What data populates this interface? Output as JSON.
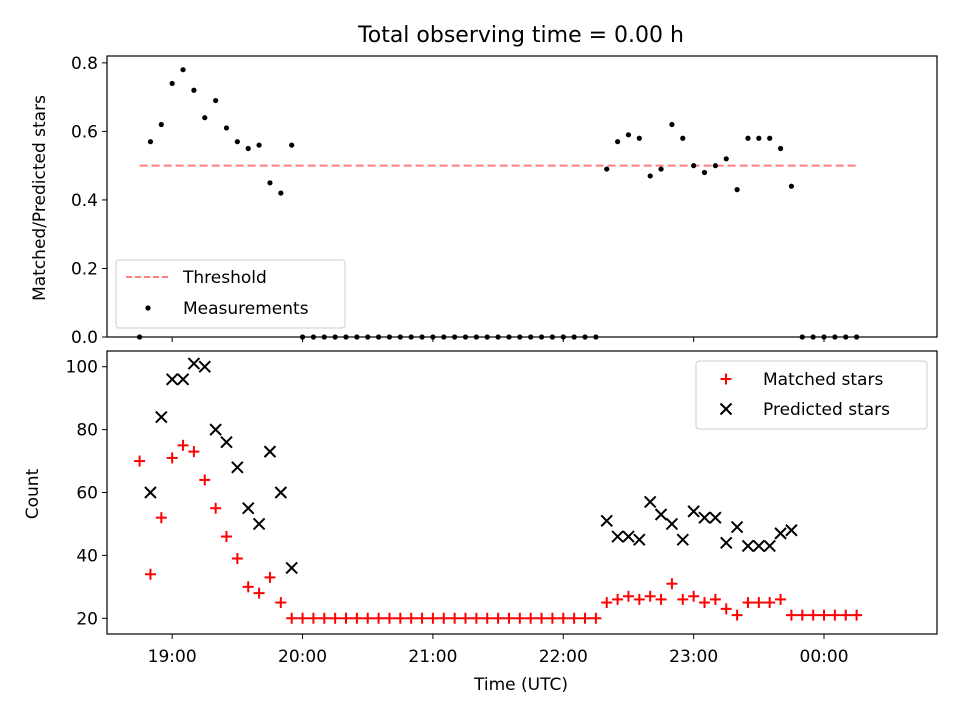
{
  "chart_data": [
    {
      "type": "scatter",
      "title": "Total observing time = 0.00 h",
      "ylabel": "Matched/Predicted stars",
      "xlabel": "",
      "xlim": [
        "18:30",
        "00:52"
      ],
      "ylim": [
        0,
        0.82
      ],
      "yticks": [
        0.0,
        0.2,
        0.4,
        0.6,
        0.8
      ],
      "ytick_labels": [
        "0.0",
        "0.2",
        "0.4",
        "0.6",
        "0.8"
      ],
      "legend_position": "lower-left",
      "threshold": {
        "name": "Threshold",
        "value": 0.5,
        "color": "#ff7f7f",
        "x_range": [
          "18:45",
          "00:15"
        ]
      },
      "series": [
        {
          "name": "Measurements",
          "color": "#000000",
          "marker": "dot",
          "points": [
            [
              "18:45",
              0.0
            ],
            [
              "18:50",
              0.57
            ],
            [
              "18:55",
              0.62
            ],
            [
              "19:00",
              0.74
            ],
            [
              "19:05",
              0.78
            ],
            [
              "19:10",
              0.72
            ],
            [
              "19:15",
              0.64
            ],
            [
              "19:20",
              0.69
            ],
            [
              "19:25",
              0.61
            ],
            [
              "19:30",
              0.57
            ],
            [
              "19:35",
              0.55
            ],
            [
              "19:40",
              0.56
            ],
            [
              "19:45",
              0.45
            ],
            [
              "19:50",
              0.42
            ],
            [
              "19:55",
              0.56
            ],
            [
              "20:00",
              0.0
            ],
            [
              "20:05",
              0.0
            ],
            [
              "20:10",
              0.0
            ],
            [
              "20:15",
              0.0
            ],
            [
              "20:20",
              0.0
            ],
            [
              "20:25",
              0.0
            ],
            [
              "20:30",
              0.0
            ],
            [
              "20:35",
              0.0
            ],
            [
              "20:40",
              0.0
            ],
            [
              "20:45",
              0.0
            ],
            [
              "20:50",
              0.0
            ],
            [
              "20:55",
              0.0
            ],
            [
              "21:00",
              0.0
            ],
            [
              "21:05",
              0.0
            ],
            [
              "21:10",
              0.0
            ],
            [
              "21:15",
              0.0
            ],
            [
              "21:20",
              0.0
            ],
            [
              "21:25",
              0.0
            ],
            [
              "21:30",
              0.0
            ],
            [
              "21:35",
              0.0
            ],
            [
              "21:40",
              0.0
            ],
            [
              "21:45",
              0.0
            ],
            [
              "21:50",
              0.0
            ],
            [
              "21:55",
              0.0
            ],
            [
              "22:00",
              0.0
            ],
            [
              "22:05",
              0.0
            ],
            [
              "22:10",
              0.0
            ],
            [
              "22:15",
              0.0
            ],
            [
              "22:20",
              0.49
            ],
            [
              "22:25",
              0.57
            ],
            [
              "22:30",
              0.59
            ],
            [
              "22:35",
              0.58
            ],
            [
              "22:40",
              0.47
            ],
            [
              "22:45",
              0.49
            ],
            [
              "22:50",
              0.62
            ],
            [
              "22:55",
              0.58
            ],
            [
              "23:00",
              0.5
            ],
            [
              "23:05",
              0.48
            ],
            [
              "23:10",
              0.5
            ],
            [
              "23:15",
              0.52
            ],
            [
              "23:20",
              0.43
            ],
            [
              "23:25",
              0.58
            ],
            [
              "23:30",
              0.58
            ],
            [
              "23:35",
              0.58
            ],
            [
              "23:40",
              0.55
            ],
            [
              "23:45",
              0.44
            ],
            [
              "23:50",
              0.0
            ],
            [
              "23:55",
              0.0
            ],
            [
              "00:00",
              0.0
            ],
            [
              "00:05",
              0.0
            ],
            [
              "00:10",
              0.0
            ],
            [
              "00:15",
              0.0
            ]
          ]
        }
      ]
    },
    {
      "type": "scatter",
      "title": "",
      "xlabel": "Time (UTC)",
      "ylabel": "Count",
      "xlim": [
        "18:30",
        "00:52"
      ],
      "ylim": [
        15,
        105
      ],
      "xticks": [
        "19:00",
        "20:00",
        "21:00",
        "22:00",
        "23:00",
        "00:00"
      ],
      "xtick_labels": [
        "19:00",
        "20:00",
        "21:00",
        "22:00",
        "23:00",
        "00:00"
      ],
      "yticks": [
        20,
        40,
        60,
        80,
        100
      ],
      "ytick_labels": [
        "20",
        "40",
        "60",
        "80",
        "100"
      ],
      "legend_position": "upper-right",
      "series": [
        {
          "name": "Matched stars",
          "color": "#ff0000",
          "marker": "plus",
          "points": [
            [
              "18:45",
              70
            ],
            [
              "18:50",
              34
            ],
            [
              "18:55",
              52
            ],
            [
              "19:00",
              71
            ],
            [
              "19:05",
              75
            ],
            [
              "19:10",
              73
            ],
            [
              "19:15",
              64
            ],
            [
              "19:20",
              55
            ],
            [
              "19:25",
              46
            ],
            [
              "19:30",
              39
            ],
            [
              "19:35",
              30
            ],
            [
              "19:40",
              28
            ],
            [
              "19:45",
              33
            ],
            [
              "19:50",
              25
            ],
            [
              "19:55",
              20
            ],
            [
              "20:00",
              20
            ],
            [
              "20:05",
              20
            ],
            [
              "20:10",
              20
            ],
            [
              "20:15",
              20
            ],
            [
              "20:20",
              20
            ],
            [
              "20:25",
              20
            ],
            [
              "20:30",
              20
            ],
            [
              "20:35",
              20
            ],
            [
              "20:40",
              20
            ],
            [
              "20:45",
              20
            ],
            [
              "20:50",
              20
            ],
            [
              "20:55",
              20
            ],
            [
              "21:00",
              20
            ],
            [
              "21:05",
              20
            ],
            [
              "21:10",
              20
            ],
            [
              "21:15",
              20
            ],
            [
              "21:20",
              20
            ],
            [
              "21:25",
              20
            ],
            [
              "21:30",
              20
            ],
            [
              "21:35",
              20
            ],
            [
              "21:40",
              20
            ],
            [
              "21:45",
              20
            ],
            [
              "21:50",
              20
            ],
            [
              "21:55",
              20
            ],
            [
              "22:00",
              20
            ],
            [
              "22:05",
              20
            ],
            [
              "22:10",
              20
            ],
            [
              "22:15",
              20
            ],
            [
              "22:20",
              25
            ],
            [
              "22:25",
              26
            ],
            [
              "22:30",
              27
            ],
            [
              "22:35",
              26
            ],
            [
              "22:40",
              27
            ],
            [
              "22:45",
              26
            ],
            [
              "22:50",
              31
            ],
            [
              "22:55",
              26
            ],
            [
              "23:00",
              27
            ],
            [
              "23:05",
              25
            ],
            [
              "23:10",
              26
            ],
            [
              "23:15",
              23
            ],
            [
              "23:20",
              21
            ],
            [
              "23:25",
              25
            ],
            [
              "23:30",
              25
            ],
            [
              "23:35",
              25
            ],
            [
              "23:40",
              26
            ],
            [
              "23:45",
              21
            ],
            [
              "23:50",
              21
            ],
            [
              "23:55",
              21
            ],
            [
              "00:00",
              21
            ],
            [
              "00:05",
              21
            ],
            [
              "00:10",
              21
            ],
            [
              "00:15",
              21
            ]
          ]
        },
        {
          "name": "Predicted stars",
          "color": "#000000",
          "marker": "x",
          "points": [
            [
              "18:50",
              60
            ],
            [
              "18:55",
              84
            ],
            [
              "19:00",
              96
            ],
            [
              "19:05",
              96
            ],
            [
              "19:10",
              101
            ],
            [
              "19:15",
              100
            ],
            [
              "19:20",
              80
            ],
            [
              "19:25",
              76
            ],
            [
              "19:30",
              68
            ],
            [
              "19:35",
              55
            ],
            [
              "19:40",
              50
            ],
            [
              "19:45",
              73
            ],
            [
              "19:50",
              60
            ],
            [
              "19:55",
              36
            ],
            [
              "22:20",
              51
            ],
            [
              "22:25",
              46
            ],
            [
              "22:30",
              46
            ],
            [
              "22:35",
              45
            ],
            [
              "22:40",
              57
            ],
            [
              "22:45",
              53
            ],
            [
              "22:50",
              50
            ],
            [
              "22:55",
              45
            ],
            [
              "23:00",
              54
            ],
            [
              "23:05",
              52
            ],
            [
              "23:10",
              52
            ],
            [
              "23:15",
              44
            ],
            [
              "23:20",
              49
            ],
            [
              "23:25",
              43
            ],
            [
              "23:30",
              43
            ],
            [
              "23:35",
              43
            ],
            [
              "23:40",
              47
            ],
            [
              "23:45",
              48
            ]
          ]
        }
      ]
    }
  ]
}
